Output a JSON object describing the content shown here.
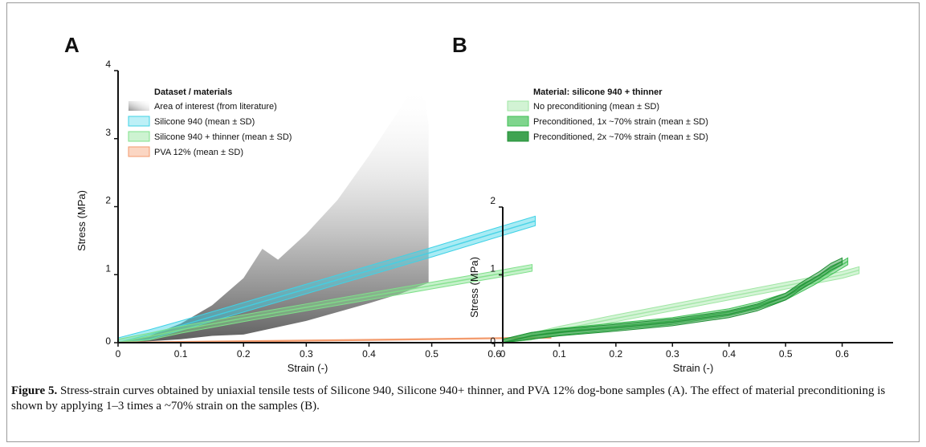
{
  "caption": {
    "label": "Figure 5.",
    "text": " Stress-strain curves obtained by uniaxial tensile tests of Silicone 940, Silicone 940+ thinner, and PVA 12% dog-bone samples (A). The effect of material preconditioning is shown by applying 1–3 times a ~70% strain on the samples (B)."
  },
  "colors": {
    "silicone": "#3fd2e6",
    "thinner": "#7fe08a",
    "pva": "#f39a6c",
    "aoi": "#888888",
    "noprecond": "#9fe6a3",
    "precond1": "#3fbf54",
    "precond2": "#1f8f34"
  },
  "chart_data": [
    {
      "type": "line",
      "panel": "A",
      "xlabel": "Strain (-)",
      "ylabel": "Stress (MPa)",
      "xlim": [
        0,
        0.69
      ],
      "ylim": [
        0,
        4
      ],
      "xticks": [
        "0",
        "0.1",
        "0.2",
        "0.3",
        "0.4",
        "0.5",
        "0.6"
      ],
      "yticks": [
        "0",
        "1",
        "2",
        "3",
        "4"
      ],
      "grid": false,
      "legend_title": "Dataset / materials",
      "legend_position": "top-left",
      "area_of_interest": {
        "name": "Area of interest (from literature)",
        "upper": [
          [
            0,
            0
          ],
          [
            0.05,
            0.1
          ],
          [
            0.1,
            0.28
          ],
          [
            0.15,
            0.55
          ],
          [
            0.2,
            0.95
          ],
          [
            0.23,
            1.38
          ],
          [
            0.255,
            1.22
          ],
          [
            0.3,
            1.6
          ],
          [
            0.35,
            2.1
          ],
          [
            0.4,
            2.75
          ],
          [
            0.45,
            3.45
          ],
          [
            0.47,
            3.78
          ],
          [
            0.49,
            3.55
          ],
          [
            0.495,
            3.2
          ]
        ],
        "lower": [
          [
            0,
            0
          ],
          [
            0.05,
            0.02
          ],
          [
            0.1,
            0.05
          ],
          [
            0.15,
            0.1
          ],
          [
            0.2,
            0.12
          ],
          [
            0.25,
            0.22
          ],
          [
            0.3,
            0.32
          ],
          [
            0.35,
            0.45
          ],
          [
            0.4,
            0.58
          ],
          [
            0.45,
            0.72
          ],
          [
            0.495,
            0.88
          ]
        ]
      },
      "series": [
        {
          "name": "Silicone 940 (mean ± SD)",
          "color_key": "silicone",
          "sd": 0.07,
          "x": [
            0,
            0.05,
            0.1,
            0.2,
            0.3,
            0.4,
            0.5,
            0.6,
            0.665
          ],
          "y": [
            0,
            0.12,
            0.25,
            0.52,
            0.79,
            1.06,
            1.33,
            1.61,
            1.79
          ]
        },
        {
          "name": "Silicone 940 + thinner (mean ± SD)",
          "color_key": "thinner",
          "sd": 0.05,
          "x": [
            0,
            0.05,
            0.1,
            0.2,
            0.3,
            0.4,
            0.5,
            0.6,
            0.66
          ],
          "y": [
            0,
            0.09,
            0.19,
            0.36,
            0.52,
            0.68,
            0.84,
            1.0,
            1.1
          ]
        },
        {
          "name": "PVA 12% (mean ± SD)",
          "color_key": "pva",
          "sd": 0.008,
          "x": [
            0,
            0.2,
            0.4,
            0.6,
            0.69
          ],
          "y": [
            0,
            0.02,
            0.04,
            0.065,
            0.075
          ]
        }
      ]
    },
    {
      "type": "line",
      "panel": "B",
      "xlabel": "Strain (-)",
      "ylabel": "Stress (MPa)",
      "xlim": [
        0,
        0.69
      ],
      "ylim": [
        0,
        2
      ],
      "xticks": [
        "0",
        "0.1",
        "0.2",
        "0.3",
        "0.4",
        "0.5",
        "0.6"
      ],
      "yticks": [
        "0",
        "1",
        "2"
      ],
      "grid": false,
      "legend_title": "Material: silicone 940 + thinner",
      "legend_position": "top-left",
      "series": [
        {
          "name": "No preconditioning (mean ± SD)",
          "color_key": "noprecond",
          "sd": 0.05,
          "x": [
            0,
            0.05,
            0.1,
            0.2,
            0.3,
            0.4,
            0.5,
            0.6,
            0.63
          ],
          "y": [
            0,
            0.09,
            0.19,
            0.36,
            0.52,
            0.68,
            0.84,
            1.0,
            1.07
          ]
        },
        {
          "name": "Preconditioned, 1x ~70% strain (mean ± SD)",
          "color_key": "precond1",
          "sd": 0.05,
          "x": [
            0,
            0.05,
            0.1,
            0.2,
            0.3,
            0.4,
            0.45,
            0.5,
            0.55,
            0.58,
            0.6,
            0.61
          ],
          "y": [
            0,
            0.1,
            0.16,
            0.24,
            0.32,
            0.45,
            0.55,
            0.68,
            0.9,
            1.05,
            1.15,
            1.2
          ]
        },
        {
          "name": "Preconditioned, 2x ~70% strain (mean ± SD)",
          "color_key": "precond2",
          "sd": 0.05,
          "x": [
            0,
            0.05,
            0.1,
            0.2,
            0.3,
            0.4,
            0.45,
            0.5,
            0.53,
            0.56,
            0.58,
            0.6
          ],
          "y": [
            0,
            0.1,
            0.15,
            0.22,
            0.3,
            0.42,
            0.52,
            0.68,
            0.85,
            1.0,
            1.12,
            1.2
          ]
        }
      ]
    }
  ]
}
